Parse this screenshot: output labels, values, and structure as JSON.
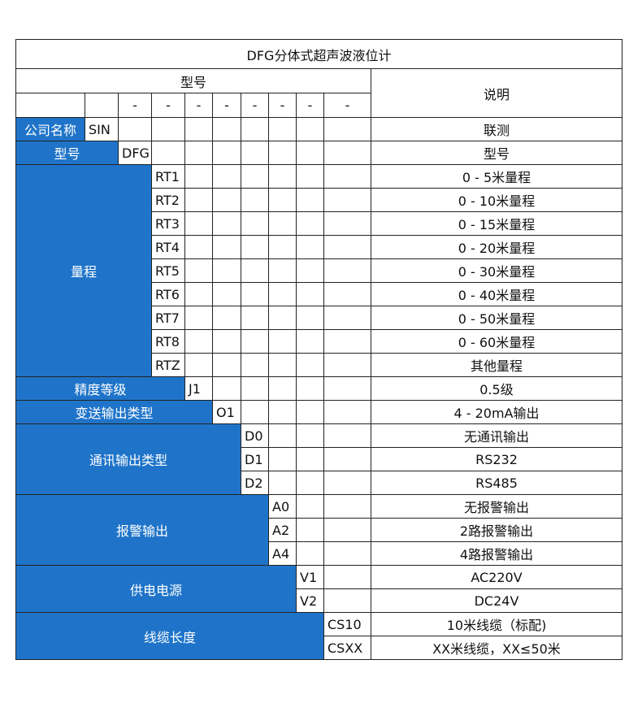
{
  "title": "DFG分体式超声波液位计",
  "header": {
    "model": "型号",
    "desc": "说明",
    "dash": "-"
  },
  "colors": {
    "category_bg": "#1f74c9"
  },
  "groups": [
    {
      "label": "公司名称",
      "codes": [
        {
          "code": "SIN",
          "desc": "联测"
        }
      ]
    },
    {
      "label": "型号",
      "codes": [
        {
          "code": "DFG",
          "desc": "型号"
        }
      ]
    },
    {
      "label": "量程",
      "codes": [
        {
          "code": "RT1",
          "desc": "0 - 5米量程"
        },
        {
          "code": "RT2",
          "desc": "0 - 10米量程"
        },
        {
          "code": "RT3",
          "desc": "0 - 15米量程"
        },
        {
          "code": "RT4",
          "desc": "0 - 20米量程"
        },
        {
          "code": "RT5",
          "desc": "0 - 30米量程"
        },
        {
          "code": "RT6",
          "desc": "0 - 40米量程"
        },
        {
          "code": "RT7",
          "desc": "0 - 50米量程"
        },
        {
          "code": "RT8",
          "desc": "0 - 60米量程"
        },
        {
          "code": "RTZ",
          "desc": "其他量程"
        }
      ]
    },
    {
      "label": "精度等级",
      "codes": [
        {
          "code": "J1",
          "desc": "0.5级"
        }
      ]
    },
    {
      "label": "变送输出类型",
      "codes": [
        {
          "code": "O1",
          "desc": "4 - 20mA输出"
        }
      ]
    },
    {
      "label": "通讯输出类型",
      "codes": [
        {
          "code": "D0",
          "desc": "无通讯输出"
        },
        {
          "code": "D1",
          "desc": "RS232"
        },
        {
          "code": "D2",
          "desc": "RS485"
        }
      ]
    },
    {
      "label": "报警输出",
      "codes": [
        {
          "code": "A0",
          "desc": "无报警输出"
        },
        {
          "code": "A2",
          "desc": "2路报警输出"
        },
        {
          "code": "A4",
          "desc": "4路报警输出"
        }
      ]
    },
    {
      "label": "供电电源",
      "codes": [
        {
          "code": "V1",
          "desc": "AC220V"
        },
        {
          "code": "V2",
          "desc": "DC24V"
        }
      ]
    },
    {
      "label": "线缆长度",
      "codes": [
        {
          "code": "CS10",
          "desc": "10米线缆（标配)"
        },
        {
          "code": "CSXX",
          "desc": "XX米线缆，XX≤50米"
        }
      ]
    }
  ]
}
